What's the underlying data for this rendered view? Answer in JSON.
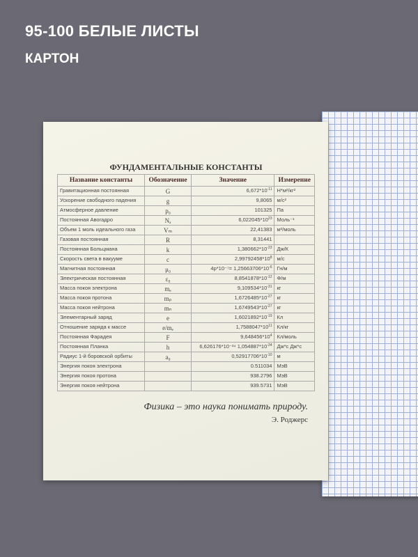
{
  "header": {
    "title": "95-100 БЕЛЫЕ ЛИСТЫ",
    "subtitle": "КАРТОН"
  },
  "cover": {
    "table_title": "ФУНДАМЕНТАЛЬНЫЕ КОНСТАНТЫ",
    "columns": [
      "Название константы",
      "Обозначение",
      "Значение",
      "Измерение"
    ],
    "rows": [
      {
        "name": "Гравитационная постоянная",
        "symbol": "G",
        "value": "6,672*10",
        "exp": "-11",
        "unit": "Н*м²/кг²"
      },
      {
        "name": "Ускорение свободного падения",
        "symbol": "g",
        "value": "9,8065",
        "exp": "",
        "unit": "м/с²"
      },
      {
        "name": "Атмосферное давление",
        "symbol": "p₀",
        "value": "101325",
        "exp": "",
        "unit": "Па"
      },
      {
        "name": "Постоянная Авогадро",
        "symbol": "Nₐ",
        "value": "6,022045*10",
        "exp": "23",
        "unit": "Моль⁻¹"
      },
      {
        "name": "Объем 1 моль идеального газа",
        "symbol": "Vₘ",
        "value": "22,41383",
        "exp": "",
        "unit": "м³/моль"
      },
      {
        "name": "Газовая постоянная",
        "symbol": "R",
        "value": "8,31441",
        "exp": "",
        "unit": ""
      },
      {
        "name": "Постоянная Больцмана",
        "symbol": "k",
        "value": "1,380662*10",
        "exp": "-23",
        "unit": "Дж/К"
      },
      {
        "name": "Скорость света в вакууме",
        "symbol": "c",
        "value": "2,99792458*10",
        "exp": "8",
        "unit": "м/с"
      },
      {
        "name": "Магнитная постоянная",
        "symbol": "μ₀",
        "value": "4p*10⁻⁷= 1,25663706*10",
        "exp": "-6",
        "unit": "Гн/м"
      },
      {
        "name": "Электрическая постоянная",
        "symbol": "ε₀",
        "value": "8,8541878*10",
        "exp": "-12",
        "unit": "Ф/м"
      },
      {
        "name": "Масса покоя электрона",
        "symbol": "mₑ",
        "value": "9,109534*10",
        "exp": "-31",
        "unit": "кг"
      },
      {
        "name": "Масса покоя протона",
        "symbol": "mₚ",
        "value": "1,6726485*10",
        "exp": "-27",
        "unit": "кг"
      },
      {
        "name": "Масса покоя нейтрона",
        "symbol": "mₙ",
        "value": "1,6749543*10",
        "exp": "-27",
        "unit": "кг"
      },
      {
        "name": "Элементарный заряд",
        "symbol": "e",
        "value": "1,6021892*10",
        "exp": "-19",
        "unit": "Кл"
      },
      {
        "name": "Отношение заряда к массе",
        "symbol": "e/mₑ",
        "value": "1,7588047*10",
        "exp": "11",
        "unit": "Кл/кг"
      },
      {
        "name": "Постоянная Фарадея",
        "symbol": "F",
        "value": "9,648456*10",
        "exp": "4",
        "unit": "Кл/моль"
      },
      {
        "name": "Постоянная Планка",
        "symbol": "h",
        "value": "6,626176*10⁻³⁴ 1,054887*10",
        "exp": "-34",
        "unit": "Дж*с Дж*с"
      },
      {
        "name": "Радиус 1-й боровской орбиты",
        "symbol": "a₀",
        "value": "0,52917706*10",
        "exp": "-10",
        "unit": "м"
      },
      {
        "name": "Энергия покоя электрона",
        "symbol": "",
        "value": "0.511034",
        "exp": "",
        "unit": "МэВ"
      },
      {
        "name": "Энергия покоя протона",
        "symbol": "",
        "value": "938.2796",
        "exp": "",
        "unit": "МэВ"
      },
      {
        "name": "Энергия покоя нейтрона",
        "symbol": "",
        "value": "939.5731",
        "exp": "",
        "unit": "МэВ"
      }
    ],
    "quote": "Физика – это наука понимать природу.",
    "author": "Э. Роджерс"
  }
}
